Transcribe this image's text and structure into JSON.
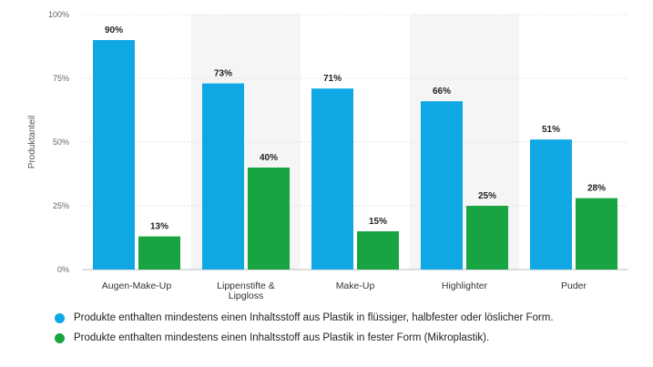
{
  "chart_data": {
    "type": "bar",
    "categories": [
      "Augen-Make-Up",
      "Lippenstifte & Lipgloss",
      "Make-Up",
      "Highlighter",
      "Puder"
    ],
    "series": [
      {
        "name": "Produkte enthalten mindestens einen Inhaltsstoff aus Plastik in flüssiger, halbfester oder löslicher Form.",
        "values": [
          90,
          73,
          71,
          66,
          51
        ],
        "labels": [
          "90%",
          "73%",
          "71%",
          "66%",
          "51%"
        ],
        "color": "#0fa7e4"
      },
      {
        "name": "Produkte enthalten mindestens einen Inhaltsstoff aus Plastik in fester Form (Mikroplastik).",
        "values": [
          13,
          40,
          15,
          25,
          28
        ],
        "labels": [
          "13%",
          "40%",
          "15%",
          "25%",
          "28%"
        ],
        "color": "#18a541"
      }
    ],
    "ylabel": "Produktanteil",
    "ylim": [
      0,
      100
    ],
    "yticks": [
      0,
      25,
      50,
      75,
      100
    ],
    "ytick_labels": [
      "0%",
      "25%",
      "50%",
      "75%",
      "100%"
    ],
    "grid": true,
    "legend_placement": "bottom"
  }
}
